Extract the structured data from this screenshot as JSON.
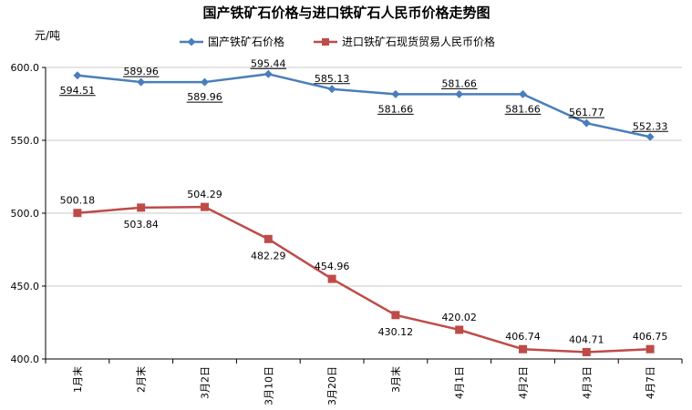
{
  "chart_data": {
    "type": "line",
    "title": "国产铁矿石价格与进口铁矿石人民币价格走势图",
    "ylabel": "元/吨",
    "ylim": [
      400,
      600
    ],
    "yticks": [
      "600.0",
      "550.0",
      "500.0",
      "450.0",
      "400.0"
    ],
    "categories": [
      "1月末",
      "2月末",
      "3月2日",
      "3月10日",
      "3月20日",
      "3月末",
      "4月1日",
      "4月2日",
      "4月3日",
      "4月7日"
    ],
    "series": [
      {
        "name": "国产铁矿石价格",
        "values": [
          594.51,
          589.96,
          589.96,
          595.44,
          585.13,
          581.66,
          581.66,
          581.66,
          561.77,
          552.33
        ],
        "labels": [
          "594.51",
          "589.96",
          "589.96",
          "595.44",
          "585.13",
          "581.66",
          "581.66",
          "581.66",
          "561.77",
          "552.33"
        ],
        "color": "#4a7ebb",
        "marker": "diamond"
      },
      {
        "name": "进口铁矿石现货贸易人民币价格",
        "values": [
          500.18,
          503.84,
          504.29,
          482.29,
          454.96,
          430.12,
          420.02,
          406.74,
          404.71,
          406.75
        ],
        "labels": [
          "500.18",
          "503.84",
          "504.29",
          "482.29",
          "454.96",
          "430.12",
          "420.02",
          "406.74",
          "404.71",
          "406.75"
        ],
        "color": "#be4b48",
        "marker": "square"
      }
    ],
    "grid": true,
    "legend": "top-center"
  }
}
